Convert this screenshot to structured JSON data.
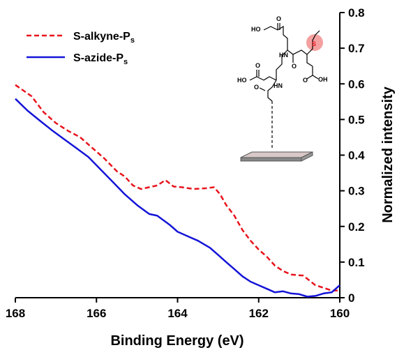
{
  "chart_data": {
    "type": "line",
    "xlabel": "Binding Energy (eV)",
    "ylabel": "Normalized intensity",
    "xlim": [
      168,
      160
    ],
    "ylim": [
      0,
      0.8
    ],
    "x_reversed": true,
    "x_ticks": [
      "168",
      "166",
      "164",
      "162",
      "160"
    ],
    "y_ticks": [
      "0",
      "0.1",
      "0.2",
      "0.3",
      "0.4",
      "0.5",
      "0.6",
      "0.7",
      "0.8"
    ],
    "legend_position": "top-left",
    "series": [
      {
        "name": "S-alkyne-Ps",
        "legend_label_main": "S-alkyne-P",
        "legend_label_sub": "s",
        "color": "#e8141c",
        "dash": "dashed",
        "x": [
          168.0,
          167.6,
          167.3,
          167.0,
          166.7,
          166.4,
          166.1,
          165.8,
          165.5,
          165.3,
          165.1,
          164.9,
          164.7,
          164.5,
          164.3,
          164.1,
          163.9,
          163.6,
          163.3,
          163.1,
          162.95,
          162.8,
          162.6,
          162.4,
          162.2,
          162.0,
          161.8,
          161.6,
          161.4,
          161.2,
          160.9,
          160.6,
          160.4,
          160.2,
          160.0
        ],
        "y": [
          0.597,
          0.565,
          0.52,
          0.49,
          0.468,
          0.45,
          0.42,
          0.39,
          0.355,
          0.34,
          0.315,
          0.305,
          0.31,
          0.315,
          0.33,
          0.312,
          0.31,
          0.305,
          0.307,
          0.31,
          0.29,
          0.26,
          0.23,
          0.19,
          0.16,
          0.135,
          0.115,
          0.09,
          0.075,
          0.065,
          0.062,
          0.035,
          0.028,
          0.02,
          0.02
        ]
      },
      {
        "name": "S-azide-Ps",
        "legend_label_main": "S-azide-P",
        "legend_label_sub": "s",
        "color": "#1414d8",
        "dash": "solid",
        "x": [
          168.0,
          167.7,
          167.4,
          167.1,
          166.8,
          166.5,
          166.2,
          165.9,
          165.6,
          165.3,
          165.0,
          164.7,
          164.5,
          164.2,
          164.0,
          163.7,
          163.5,
          163.2,
          163.0,
          162.8,
          162.6,
          162.4,
          162.2,
          162.0,
          161.8,
          161.6,
          161.4,
          161.2,
          161.0,
          160.8,
          160.6,
          160.4,
          160.2,
          160.0
        ],
        "y": [
          0.558,
          0.525,
          0.497,
          0.47,
          0.445,
          0.42,
          0.395,
          0.36,
          0.325,
          0.29,
          0.26,
          0.235,
          0.23,
          0.205,
          0.185,
          0.17,
          0.16,
          0.14,
          0.12,
          0.1,
          0.08,
          0.06,
          0.045,
          0.035,
          0.025,
          0.015,
          0.018,
          0.012,
          0.01,
          0.003,
          0.005,
          0.012,
          0.015,
          0.035
        ]
      }
    ]
  },
  "inset": {
    "labels": {
      "ho_top": "HO",
      "o_top": "O",
      "ho_mid": "HO",
      "o_mid": "O",
      "hn_1": "HN",
      "o_1": "O",
      "hn_2": "HN",
      "o_2": "O",
      "oh_right": "OH",
      "o_right": "O",
      "s_atom": "S"
    },
    "highlight_color": "#f4a0a0",
    "surface_color": "#d8c8c8"
  }
}
